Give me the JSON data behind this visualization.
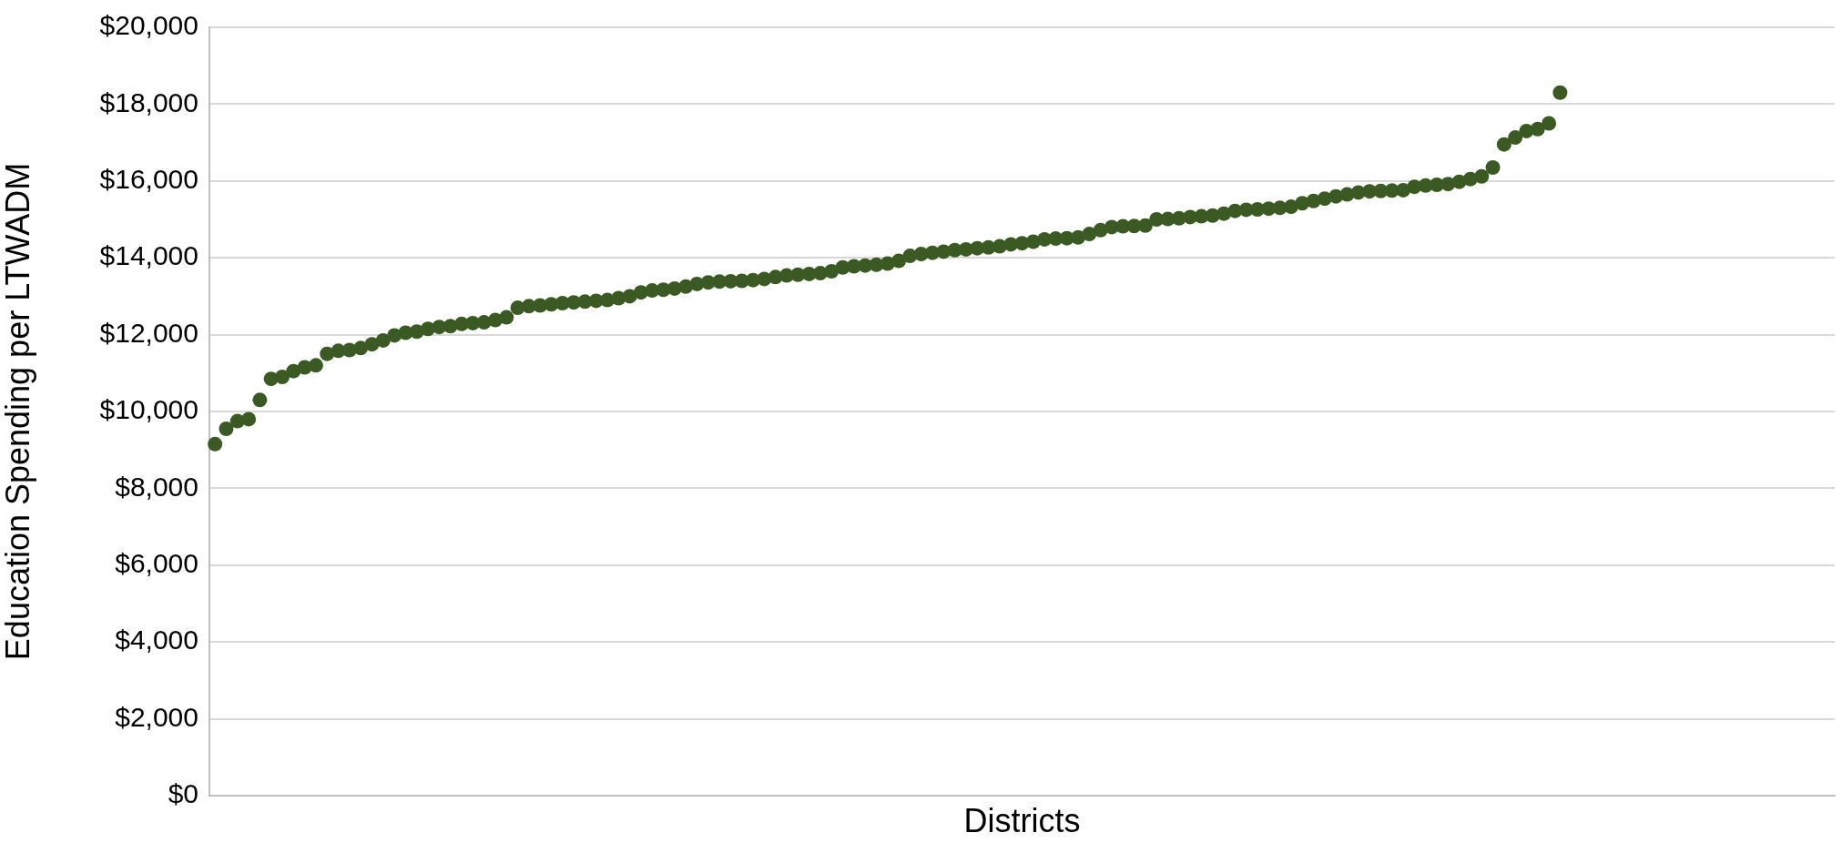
{
  "chart_data": {
    "type": "scatter",
    "xlabel": "Districts",
    "ylabel": "Education Spending per LTWADM",
    "categories": [
      null,
      null,
      null,
      null,
      null,
      null,
      null,
      null,
      null,
      null,
      null,
      null,
      null,
      null,
      null,
      null,
      null,
      null,
      null,
      null,
      null,
      null,
      null,
      null,
      null,
      null,
      null,
      null,
      null,
      null,
      null,
      null,
      null,
      null,
      null,
      null,
      null,
      null,
      null,
      null,
      null,
      null,
      null,
      null,
      null,
      null,
      null,
      null,
      null,
      null,
      null,
      null,
      null,
      null,
      null,
      null,
      null,
      null,
      null,
      null,
      null,
      null,
      null,
      null,
      null,
      null,
      null,
      null,
      null,
      null,
      null,
      null,
      null,
      null,
      null,
      null,
      null,
      null,
      null,
      null,
      null,
      null,
      null,
      null,
      null,
      null,
      null,
      null,
      null,
      null,
      null,
      null,
      null,
      null,
      null,
      null,
      null,
      null,
      null,
      null,
      null,
      null,
      null,
      null,
      null,
      null,
      null,
      null,
      null,
      null,
      null,
      null,
      null,
      null,
      null,
      null,
      null,
      null,
      null,
      null,
      null,
      null,
      null,
      null,
      null,
      null,
      null,
      null,
      null,
      null,
      null,
      null,
      null,
      null,
      null,
      null,
      null,
      null,
      null,
      null,
      null,
      null,
      null,
      null,
      null
    ],
    "series": [
      {
        "color": "#3b5a23",
        "values": [
          9150,
          9550,
          9750,
          9800,
          10300,
          10850,
          10900,
          11050,
          11150,
          11200,
          11500,
          11580,
          11600,
          11650,
          11750,
          11850,
          11980,
          12050,
          12080,
          12150,
          12200,
          12220,
          12280,
          12300,
          12320,
          12380,
          12450,
          12700,
          12740,
          12760,
          12790,
          12820,
          12840,
          12860,
          12880,
          12900,
          12950,
          13000,
          13100,
          13150,
          13170,
          13200,
          13250,
          13320,
          13360,
          13380,
          13390,
          13400,
          13420,
          13450,
          13500,
          13540,
          13560,
          13580,
          13600,
          13650,
          13750,
          13780,
          13800,
          13820,
          13850,
          13920,
          14050,
          14100,
          14130,
          14160,
          14200,
          14220,
          14250,
          14270,
          14300,
          14350,
          14380,
          14420,
          14480,
          14500,
          14510,
          14530,
          14620,
          14720,
          14800,
          14820,
          14830,
          14840,
          15000,
          15010,
          15030,
          15060,
          15080,
          15100,
          15150,
          15220,
          15250,
          15260,
          15280,
          15300,
          15330,
          15420,
          15480,
          15540,
          15600,
          15650,
          15700,
          15730,
          15740,
          15750,
          15760,
          15850,
          15880,
          15900,
          15920,
          15980,
          16050,
          16120,
          16350,
          16950,
          17130,
          17300,
          17350,
          17500,
          18300,
          null,
          null,
          null,
          null,
          null,
          null,
          null,
          null,
          null,
          null,
          null,
          null,
          null,
          null,
          null,
          null,
          null,
          null,
          null,
          null,
          null,
          null,
          null,
          null
        ]
      }
    ],
    "ylim": [
      0,
      20000
    ],
    "yticks": [
      {
        "value": 0,
        "label": "$0"
      },
      {
        "value": 2000,
        "label": "$2,000"
      },
      {
        "value": 4000,
        "label": "$4,000"
      },
      {
        "value": 6000,
        "label": "$6,000"
      },
      {
        "value": 8000,
        "label": "$8,000"
      },
      {
        "value": 10000,
        "label": "$10,000"
      },
      {
        "value": 12000,
        "label": "$12,000"
      },
      {
        "value": 14000,
        "label": "$14,000"
      },
      {
        "value": 16000,
        "label": "$16,000"
      },
      {
        "value": 18000,
        "label": "$18,000"
      },
      {
        "value": 20000,
        "label": "$20,000"
      }
    ],
    "grid": "y",
    "marker": "circle",
    "tick_labels": "y"
  }
}
